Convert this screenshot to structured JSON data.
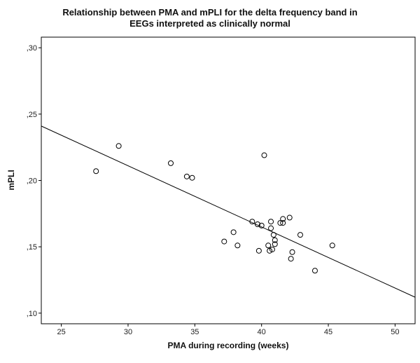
{
  "chart_data": {
    "type": "scatter",
    "title_lines": [
      "Relationship between PMA and mPLI for the delta frequency band in",
      "EEGs interpreted as clinically normal"
    ],
    "xlabel": "PMA during recording (weeks)",
    "ylabel": "mPLI",
    "xlim": [
      23.5,
      51.5
    ],
    "ylim": [
      0.092,
      0.308
    ],
    "x_ticks": [
      25,
      30,
      35,
      40,
      45,
      50
    ],
    "x_tick_labels": [
      "25",
      "30",
      "35",
      "40",
      "45",
      "50"
    ],
    "y_ticks": [
      0.1,
      0.15,
      0.2,
      0.25,
      0.3
    ],
    "y_tick_labels": [
      ",10",
      ",15",
      ",20",
      ",25",
      ",30"
    ],
    "grid": false,
    "legend": "none",
    "marker": "open-circle",
    "points": [
      {
        "x": 27.6,
        "y": 0.207
      },
      {
        "x": 29.3,
        "y": 0.226
      },
      {
        "x": 33.2,
        "y": 0.213
      },
      {
        "x": 34.4,
        "y": 0.203
      },
      {
        "x": 34.8,
        "y": 0.202
      },
      {
        "x": 37.2,
        "y": 0.154
      },
      {
        "x": 37.9,
        "y": 0.161
      },
      {
        "x": 38.2,
        "y": 0.151
      },
      {
        "x": 39.3,
        "y": 0.169
      },
      {
        "x": 39.7,
        "y": 0.167
      },
      {
        "x": 39.8,
        "y": 0.147
      },
      {
        "x": 40.0,
        "y": 0.166
      },
      {
        "x": 40.2,
        "y": 0.219
      },
      {
        "x": 40.5,
        "y": 0.151
      },
      {
        "x": 40.6,
        "y": 0.147
      },
      {
        "x": 40.7,
        "y": 0.164
      },
      {
        "x": 40.7,
        "y": 0.169
      },
      {
        "x": 40.8,
        "y": 0.148
      },
      {
        "x": 40.9,
        "y": 0.159
      },
      {
        "x": 41.0,
        "y": 0.155
      },
      {
        "x": 41.0,
        "y": 0.152
      },
      {
        "x": 41.4,
        "y": 0.168
      },
      {
        "x": 41.6,
        "y": 0.168
      },
      {
        "x": 41.6,
        "y": 0.171
      },
      {
        "x": 42.1,
        "y": 0.172
      },
      {
        "x": 42.2,
        "y": 0.141
      },
      {
        "x": 42.3,
        "y": 0.146
      },
      {
        "x": 42.9,
        "y": 0.159
      },
      {
        "x": 44.0,
        "y": 0.132
      },
      {
        "x": 45.3,
        "y": 0.151
      }
    ],
    "fit_line": {
      "x": [
        23.5,
        51.5
      ],
      "y": [
        0.241,
        0.112
      ]
    }
  }
}
